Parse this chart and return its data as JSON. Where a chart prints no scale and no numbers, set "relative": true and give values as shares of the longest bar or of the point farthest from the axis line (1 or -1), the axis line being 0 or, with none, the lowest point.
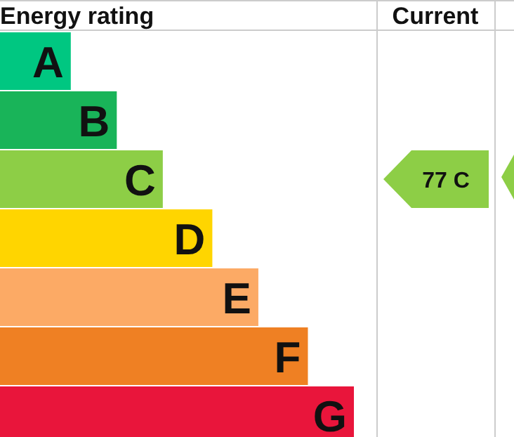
{
  "chart_data": {
    "type": "bar",
    "orientation": "horizontal",
    "relative": true,
    "title": "Energy rating",
    "categories": [
      "A",
      "B",
      "C",
      "D",
      "E",
      "F",
      "G"
    ],
    "values": [
      0.2,
      0.33,
      0.46,
      0.6,
      0.73,
      0.87,
      1
    ],
    "colors": [
      "#00c781",
      "#19b459",
      "#8dce46",
      "#ffd500",
      "#fcaa65",
      "#ef8023",
      "#e9153b"
    ],
    "annotations": [
      "Current",
      "77 C"
    ]
  }
}
